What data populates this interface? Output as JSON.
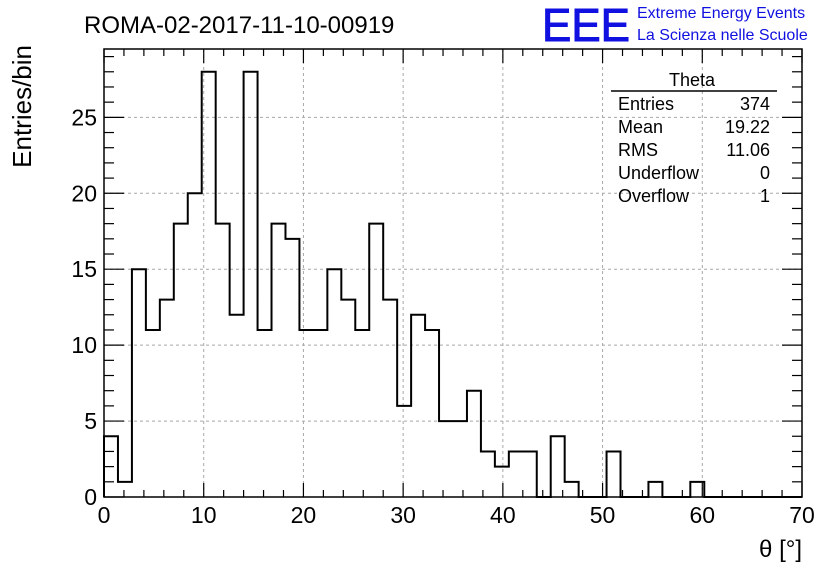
{
  "run_title": "ROMA-02-2017-11-10-00919",
  "logo": {
    "mark": "EEE",
    "line1": "Extreme Energy Events",
    "line2": "La Scienza nelle Scuole",
    "color": "#1010e0"
  },
  "stats_box": {
    "title": "Theta",
    "rows": [
      {
        "label": "Entries",
        "value": "374"
      },
      {
        "label": "Mean",
        "value": "19.22"
      },
      {
        "label": "RMS",
        "value": "11.06"
      },
      {
        "label": "Underflow",
        "value": "0"
      },
      {
        "label": "Overflow",
        "value": "1"
      }
    ]
  },
  "chart_data": {
    "type": "histogram",
    "title": "ROMA-02-2017-11-10-00919",
    "xlabel": "θ [°]",
    "ylabel": "Entries/bin",
    "xlim": [
      0,
      70
    ],
    "ylim": [
      0,
      29.5
    ],
    "bin_width": 1.4,
    "bin_start": 0,
    "x_ticks": [
      0,
      10,
      20,
      30,
      40,
      50,
      60,
      70
    ],
    "y_ticks": [
      0,
      5,
      10,
      15,
      20,
      25
    ],
    "grid": true,
    "legend": "none",
    "values": [
      4,
      1,
      15,
      11,
      13,
      18,
      20,
      28,
      18,
      12,
      28,
      11,
      18,
      17,
      11,
      11,
      15,
      13,
      11,
      18,
      13,
      6,
      12,
      11,
      5,
      5,
      7,
      3,
      2,
      3,
      3,
      0,
      4,
      1,
      0,
      0,
      3,
      0,
      0,
      1,
      0,
      0,
      1,
      0,
      0,
      0,
      0,
      0,
      0,
      0
    ]
  }
}
